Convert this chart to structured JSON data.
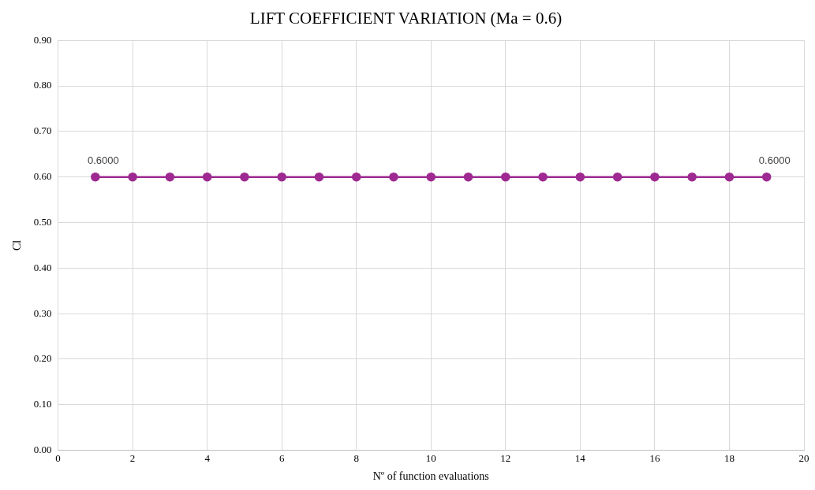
{
  "chart_data": {
    "type": "line",
    "title": "LIFT COEFFICIENT VARIATION (Ma = 0.6)",
    "xlabel": "Nº of function evaluations",
    "ylabel": "Cl",
    "x": [
      1,
      2,
      3,
      4,
      5,
      6,
      7,
      8,
      9,
      10,
      11,
      12,
      13,
      14,
      15,
      16,
      17,
      18,
      19
    ],
    "series": [
      {
        "color": "#9e2a91",
        "values": [
          0.6,
          0.6,
          0.6,
          0.6,
          0.6,
          0.6,
          0.6,
          0.6,
          0.6,
          0.6,
          0.6,
          0.6,
          0.6,
          0.6,
          0.6,
          0.6,
          0.6,
          0.6,
          0.6
        ],
        "value_labels": [
          "0.6000",
          null,
          null,
          null,
          null,
          null,
          null,
          null,
          null,
          null,
          null,
          null,
          null,
          null,
          null,
          null,
          null,
          null,
          "0.6000"
        ]
      }
    ],
    "xlim": [
      0,
      20
    ],
    "xticks": [
      0,
      2,
      4,
      6,
      8,
      10,
      12,
      14,
      16,
      18,
      20
    ],
    "ylim": [
      0,
      0.9
    ],
    "yticks": [
      {
        "value": 0,
        "label": "0.00"
      },
      {
        "value": 0.1,
        "label": "0.10"
      },
      {
        "value": 0.2,
        "label": "0.20"
      },
      {
        "value": 0.3,
        "label": "0.30"
      },
      {
        "value": 0.4,
        "label": "0.40"
      },
      {
        "value": 0.5,
        "label": "0.50"
      },
      {
        "value": 0.6,
        "label": "0.60"
      },
      {
        "value": 0.7,
        "label": "0.70"
      },
      {
        "value": 0.8,
        "label": "0.80"
      },
      {
        "value": 0.9,
        "label": "0.90"
      }
    ],
    "grid": true,
    "legend": false,
    "marker": "circle",
    "line_style": "solid"
  }
}
